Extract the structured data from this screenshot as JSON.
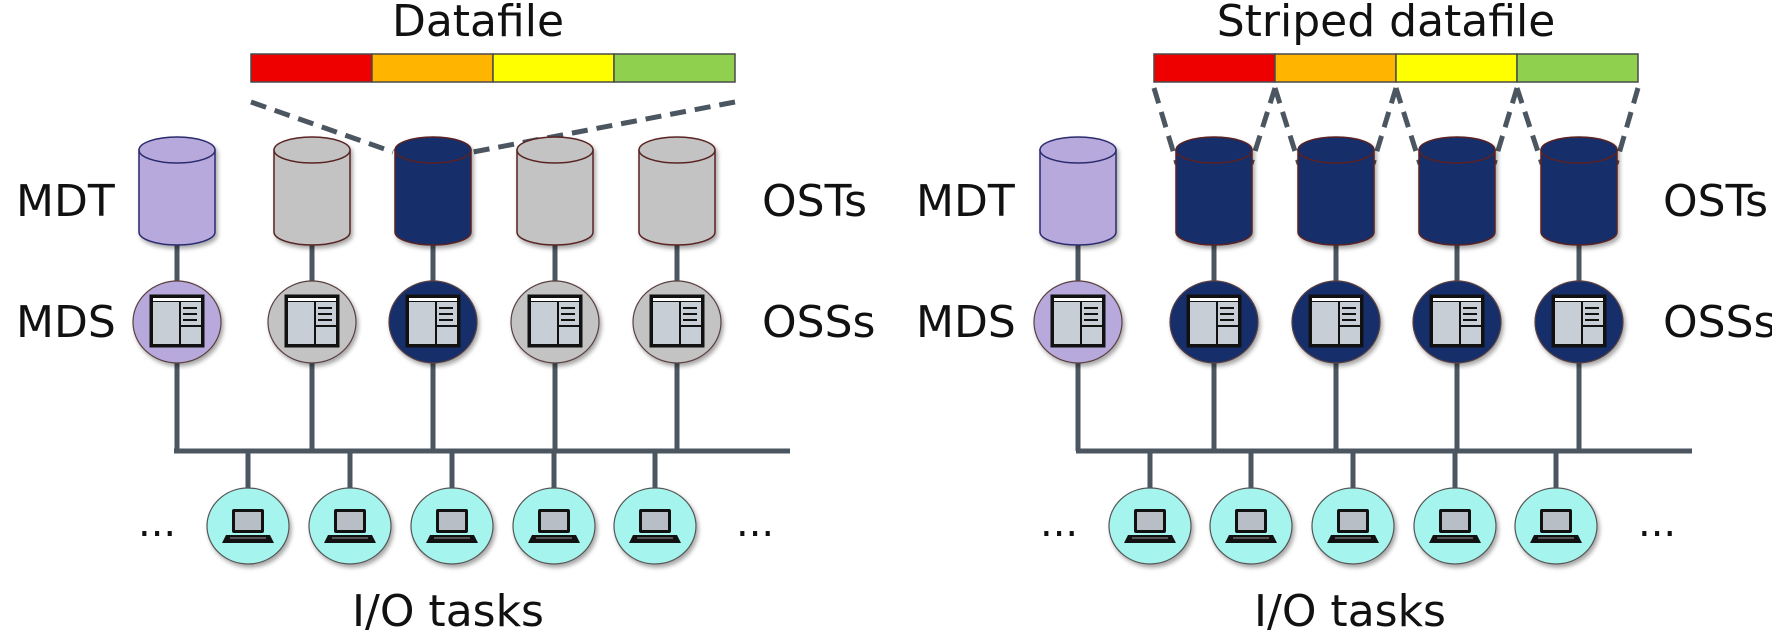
{
  "panels": [
    {
      "id": "left",
      "title": "Datafile",
      "mdt_label": "MDT",
      "mds_label": "MDS",
      "ost_label": "OSTs",
      "oss_label": "OSSs",
      "io_label": "I/O tasks",
      "ellipsis_left": "...",
      "ellipsis_right": "...",
      "striped": false,
      "active_osts": [
        2
      ],
      "file_segments": [
        "#ee0000",
        "#ffb400",
        "#ffff00",
        "#8fd14f"
      ]
    },
    {
      "id": "right",
      "title": "Striped datafile",
      "mdt_label": "MDT",
      "mds_label": "MDS",
      "ost_label": "OSTs",
      "oss_label": "OSSs",
      "io_label": "I/O tasks",
      "ellipsis_left": "...",
      "ellipsis_right": "...",
      "striped": true,
      "active_osts": [
        1,
        2,
        3,
        4
      ],
      "file_segments": [
        "#ee0000",
        "#ffb400",
        "#ffff00",
        "#8fd14f"
      ]
    }
  ],
  "colors": {
    "mdt": "#b7a9dc",
    "inactive": "#c3c3c3",
    "active": "#172d6b",
    "client": "#a5f5ee",
    "line": "#4b5660"
  }
}
